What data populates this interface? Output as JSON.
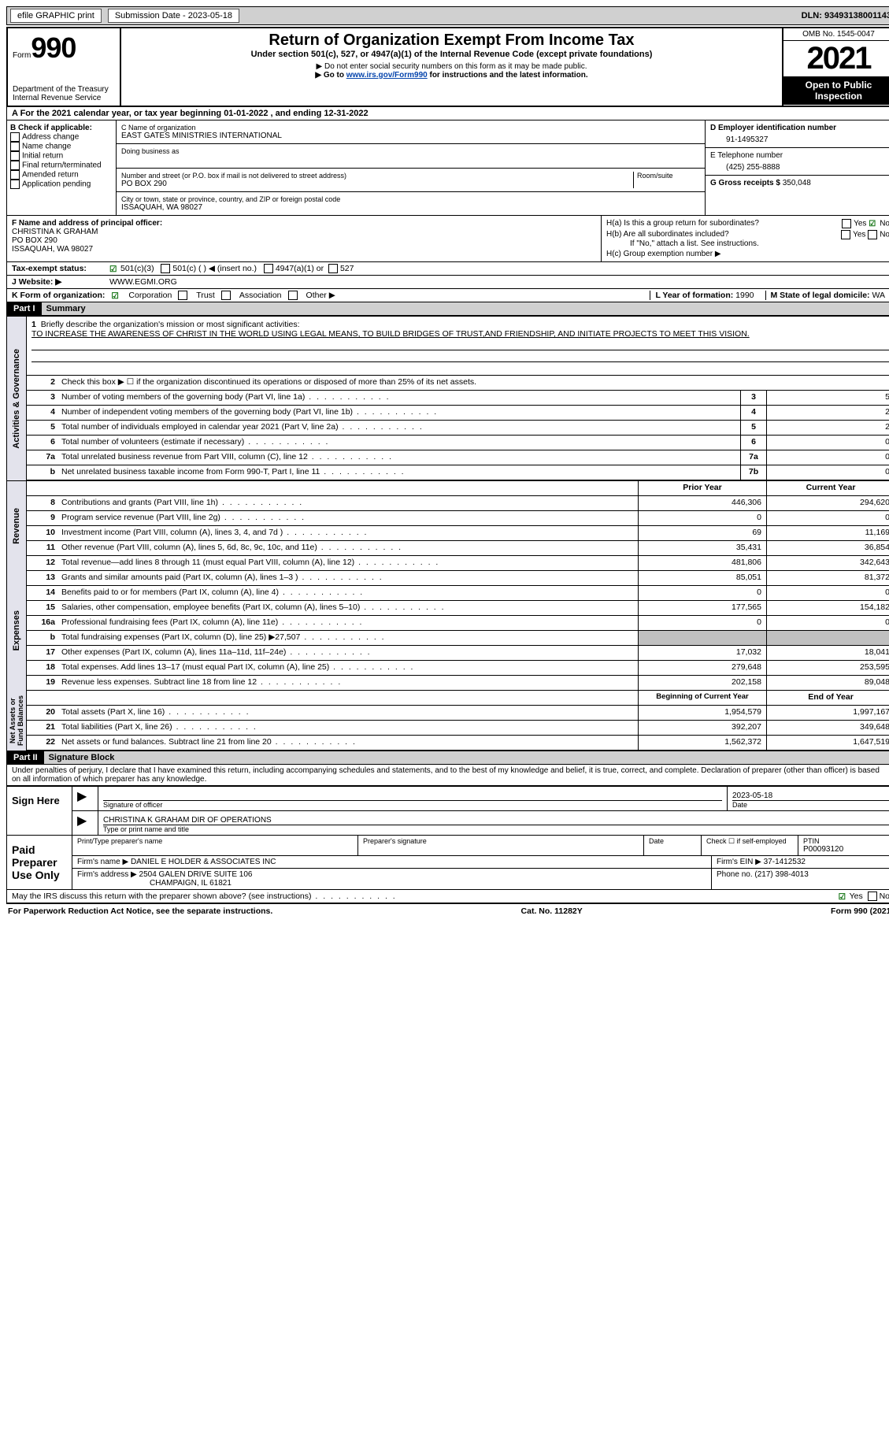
{
  "topbar": {
    "efile_label": "efile GRAPHIC print",
    "submission": "Submission Date - 2023-05-18",
    "dln": "DLN: 93493138001143"
  },
  "header": {
    "form_prefix": "Form",
    "form_number": "990",
    "dept": "Department of the Treasury",
    "irs": "Internal Revenue Service",
    "title": "Return of Organization Exempt From Income Tax",
    "subtitle": "Under section 501(c), 527, or 4947(a)(1) of the Internal Revenue Code (except private foundations)",
    "note1": "▶ Do not enter social security numbers on this form as it may be made public.",
    "note2_pre": "▶ Go to ",
    "note2_link": "www.irs.gov/Form990",
    "note2_post": " for instructions and the latest information.",
    "omb": "OMB No. 1545-0047",
    "year": "2021",
    "open": "Open to Public Inspection"
  },
  "lineA": "A For the 2021 calendar year, or tax year beginning 01-01-2022   , and ending 12-31-2022",
  "blockB": {
    "heading": "B Check if applicable:",
    "opts": [
      "Address change",
      "Name change",
      "Initial return",
      "Final return/terminated",
      "Amended return",
      "Application pending"
    ]
  },
  "blockC": {
    "label": "C Name of organization",
    "name": "EAST GATES MINISTRIES INTERNATIONAL",
    "dba_label": "Doing business as",
    "addr_label": "Number and street (or P.O. box if mail is not delivered to street address)",
    "room": "Room/suite",
    "addr": "PO BOX 290",
    "city_label": "City or town, state or province, country, and ZIP or foreign postal code",
    "city": "ISSAQUAH, WA  98027"
  },
  "blockD": {
    "label": "D Employer identification number",
    "ein": "91-1495327",
    "tel_label": "E Telephone number",
    "tel": "(425) 255-8888",
    "gross_label": "G Gross receipts $",
    "gross": "350,048"
  },
  "blockF": {
    "label": "F Name and address of principal officer:",
    "name": "CHRISTINA K GRAHAM",
    "addr1": "PO BOX 290",
    "addr2": "ISSAQUAH, WA  98027"
  },
  "blockH": {
    "a": "H(a)  Is this a group return for subordinates?",
    "b": "H(b)  Are all subordinates included?",
    "b_note": "If \"No,\" attach a list. See instructions.",
    "c": "H(c)  Group exemption number ▶",
    "yes": "Yes",
    "no": "No"
  },
  "taxExempt": {
    "label": "Tax-exempt status:",
    "o1": "501(c)(3)",
    "o2": "501(c) (  ) ◀ (insert no.)",
    "o3": "4947(a)(1) or",
    "o4": "527"
  },
  "website": {
    "label": "J  Website: ▶",
    "value": "WWW.EGMI.ORG"
  },
  "formOrg": {
    "label": "K Form of organization:",
    "o1": "Corporation",
    "o2": "Trust",
    "o3": "Association",
    "o4": "Other ▶",
    "yr_label": "L Year of formation:",
    "yr": "1990",
    "st_label": "M State of legal domicile:",
    "st": "WA"
  },
  "part1": {
    "header": "Part I",
    "title": "Summary",
    "side_ag": "Activities & Governance",
    "side_rev": "Revenue",
    "side_exp": "Expenses",
    "side_net": "Net Assets or Fund Balances",
    "line1_label": "Briefly describe the organization's mission or most significant activities:",
    "mission": "TO INCREASE THE AWARENESS OF CHRIST IN THE WORLD USING LEGAL MEANS, TO BUILD BRIDGES OF TRUST,AND FRIENDSHIP, AND INITIATE PROJECTS TO MEET THIS VISION.",
    "line2": "Check this box ▶ ☐ if the organization discontinued its operations or disposed of more than 25% of its net assets.",
    "rows_ag": [
      {
        "n": "3",
        "d": "Number of voting members of the governing body (Part VI, line 1a)",
        "b": "3",
        "v": "5"
      },
      {
        "n": "4",
        "d": "Number of independent voting members of the governing body (Part VI, line 1b)",
        "b": "4",
        "v": "2"
      },
      {
        "n": "5",
        "d": "Total number of individuals employed in calendar year 2021 (Part V, line 2a)",
        "b": "5",
        "v": "2"
      },
      {
        "n": "6",
        "d": "Total number of volunteers (estimate if necessary)",
        "b": "6",
        "v": "0"
      },
      {
        "n": "7a",
        "d": "Total unrelated business revenue from Part VIII, column (C), line 12",
        "b": "7a",
        "v": "0"
      },
      {
        "n": "b",
        "d": "Net unrelated business taxable income from Form 990-T, Part I, line 11",
        "b": "7b",
        "v": "0"
      }
    ],
    "hdr_prior": "Prior Year",
    "hdr_curr": "Current Year",
    "rows_rev": [
      {
        "n": "8",
        "d": "Contributions and grants (Part VIII, line 1h)",
        "p": "446,306",
        "c": "294,620"
      },
      {
        "n": "9",
        "d": "Program service revenue (Part VIII, line 2g)",
        "p": "0",
        "c": "0"
      },
      {
        "n": "10",
        "d": "Investment income (Part VIII, column (A), lines 3, 4, and 7d )",
        "p": "69",
        "c": "11,169"
      },
      {
        "n": "11",
        "d": "Other revenue (Part VIII, column (A), lines 5, 6d, 8c, 9c, 10c, and 11e)",
        "p": "35,431",
        "c": "36,854"
      },
      {
        "n": "12",
        "d": "Total revenue—add lines 8 through 11 (must equal Part VIII, column (A), line 12)",
        "p": "481,806",
        "c": "342,643"
      }
    ],
    "rows_exp": [
      {
        "n": "13",
        "d": "Grants and similar amounts paid (Part IX, column (A), lines 1–3 )",
        "p": "85,051",
        "c": "81,372"
      },
      {
        "n": "14",
        "d": "Benefits paid to or for members (Part IX, column (A), line 4)",
        "p": "0",
        "c": "0"
      },
      {
        "n": "15",
        "d": "Salaries, other compensation, employee benefits (Part IX, column (A), lines 5–10)",
        "p": "177,565",
        "c": "154,182"
      },
      {
        "n": "16a",
        "d": "Professional fundraising fees (Part IX, column (A), line 11e)",
        "p": "0",
        "c": "0"
      },
      {
        "n": "b",
        "d": "Total fundraising expenses (Part IX, column (D), line 25) ▶27,507",
        "p": "",
        "c": "",
        "gray": true
      },
      {
        "n": "17",
        "d": "Other expenses (Part IX, column (A), lines 11a–11d, 11f–24e)",
        "p": "17,032",
        "c": "18,041"
      },
      {
        "n": "18",
        "d": "Total expenses. Add lines 13–17 (must equal Part IX, column (A), line 25)",
        "p": "279,648",
        "c": "253,595"
      },
      {
        "n": "19",
        "d": "Revenue less expenses. Subtract line 18 from line 12",
        "p": "202,158",
        "c": "89,048"
      }
    ],
    "hdr_beg": "Beginning of Current Year",
    "hdr_end": "End of Year",
    "rows_net": [
      {
        "n": "20",
        "d": "Total assets (Part X, line 16)",
        "p": "1,954,579",
        "c": "1,997,167"
      },
      {
        "n": "21",
        "d": "Total liabilities (Part X, line 26)",
        "p": "392,207",
        "c": "349,648"
      },
      {
        "n": "22",
        "d": "Net assets or fund balances. Subtract line 21 from line 20",
        "p": "1,562,372",
        "c": "1,647,519"
      }
    ]
  },
  "part2": {
    "header": "Part II",
    "title": "Signature Block",
    "declaration": "Under penalties of perjury, I declare that I have examined this return, including accompanying schedules and statements, and to the best of my knowledge and belief, it is true, correct, and complete. Declaration of preparer (other than officer) is based on all information of which preparer has any knowledge.",
    "sign_here": "Sign Here",
    "sig_officer": "Signature of officer",
    "sig_date": "2023-05-18",
    "name_title": "CHRISTINA K GRAHAM  DIR OF OPERATIONS",
    "name_label": "Type or print name and title",
    "date_label": "Date",
    "paid": "Paid Preparer Use Only",
    "p_name_label": "Print/Type preparer's name",
    "p_sig_label": "Preparer's signature",
    "p_date_label": "Date",
    "p_check": "Check ☐ if self-employed",
    "ptin_label": "PTIN",
    "ptin": "P00093120",
    "firm_name_label": "Firm's name    ▶",
    "firm_name": "DANIEL E HOLDER & ASSOCIATES INC",
    "firm_ein_label": "Firm's EIN ▶",
    "firm_ein": "37-1412532",
    "firm_addr_label": "Firm's address ▶",
    "firm_addr1": "2504 GALEN DRIVE SUITE 106",
    "firm_addr2": "CHAMPAIGN, IL  61821",
    "phone_label": "Phone no.",
    "phone": "(217) 398-4013",
    "discuss": "May the IRS discuss this return with the preparer shown above? (see instructions)",
    "yes": "Yes",
    "no": "No"
  },
  "footer": {
    "left": "For Paperwork Reduction Act Notice, see the separate instructions.",
    "mid": "Cat. No. 11282Y",
    "right": "Form 990 (2021)"
  }
}
